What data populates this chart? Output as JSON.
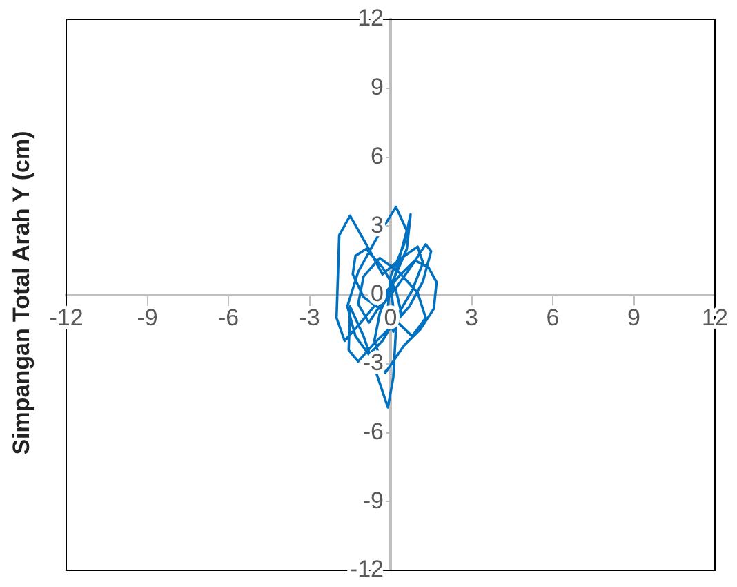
{
  "chart_data": {
    "type": "line",
    "ylabel": "Simpangan Total Arah Y (cm)",
    "xlim": [
      -12,
      12
    ],
    "ylim": [
      -12,
      12
    ],
    "xticks": [
      -12,
      -9,
      -6,
      -3,
      0,
      3,
      6,
      9,
      12
    ],
    "yticks": [
      -12,
      -9,
      -6,
      -3,
      0,
      3,
      6,
      9,
      12
    ],
    "grid": false,
    "legend": false,
    "marker": "none",
    "line_style": "solid",
    "series": [
      {
        "color": "#0070c0",
        "x": [
          0,
          0.3,
          0.6,
          0.2,
          -0.5,
          -1.2,
          -1.6,
          -1.3,
          -0.8,
          -0.3,
          0.2,
          0.8,
          1.2,
          1.0,
          0.4,
          -0.3,
          -0.9,
          -1.5,
          -1.9,
          -2.0,
          -1.7,
          -1.1,
          -0.4,
          0.3,
          0.9,
          1.4,
          1.7,
          1.6,
          1.1,
          0.5,
          -0.2,
          -0.6,
          -0.4,
          0,
          0.2,
          0.1,
          -0.1,
          -0.5,
          -1.0,
          -1.5,
          -1.55,
          -1.2,
          -0.6,
          0.1,
          0.7,
          1.2,
          1.5,
          1.3,
          0.8,
          0.2,
          -0.4,
          -1.0,
          -1.4,
          -1.3,
          -0.9,
          -0.3,
          0.2,
          0.4,
          0.1,
          -0.1,
          0,
          0.5,
          0.74,
          0.6,
          0.2,
          -0.3,
          -0.8,
          -1.2,
          -1.0,
          -0.4,
          0.3,
          1.0,
          1.3,
          0.8,
          0
        ],
        "values": [
          0,
          1.5,
          2.8,
          3.83,
          2.5,
          1.0,
          -0.5,
          -1.8,
          -2.6,
          -2.0,
          -1.0,
          0.2,
          1.4,
          2.1,
          1.6,
          0.9,
          2.2,
          3.45,
          2.6,
          -1.0,
          -2.0,
          -1.2,
          -0.2,
          0.8,
          1.5,
          1.2,
          0.55,
          -0.6,
          -1.5,
          -2.2,
          -3.4,
          -2.0,
          -0.8,
          0.4,
          -1.5,
          -3.6,
          -4.9,
          -3.5,
          -1.8,
          -0.5,
          -2.4,
          -2.9,
          -2.1,
          -1.3,
          -0.5,
          0.6,
          1.9,
          2.2,
          1.3,
          0.3,
          -0.6,
          -0.1,
          0.9,
          1.7,
          2.0,
          1.2,
          0.2,
          -0.8,
          -1.6,
          -0.6,
          0.8,
          2.2,
          3.5,
          2.0,
          0.9,
          -0.3,
          -1.2,
          -0.4,
          0.8,
          1.6,
          1.0,
          0.1,
          -1.0,
          -1.8,
          -0.9
        ]
      }
    ]
  }
}
